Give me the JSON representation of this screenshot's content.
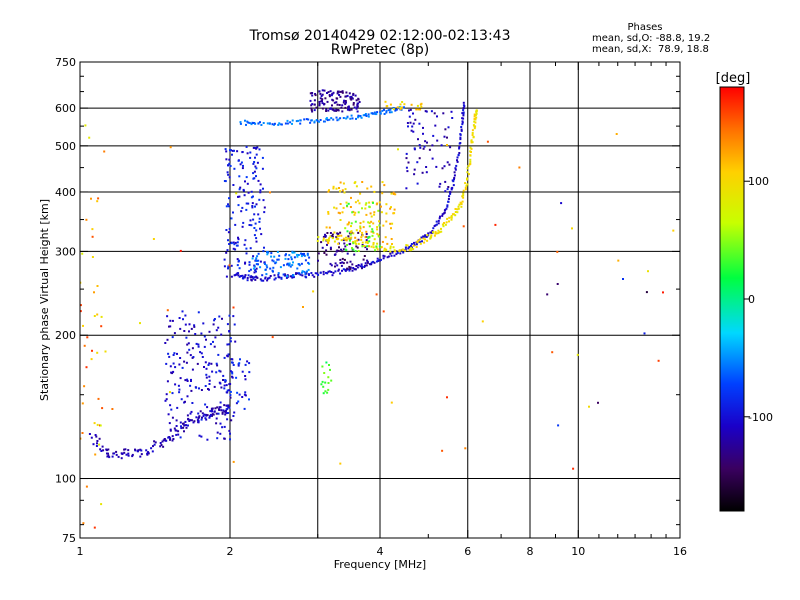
{
  "chart_data": {
    "type": "scatter",
    "title": "Tromsø 20140429 02:12:00-02:13:43",
    "subtitle": "RwPretec (8p)",
    "xlabel": "Frequency [MHz]",
    "ylabel": "Stationary phase Virtual Height [km]",
    "x_scale": "log",
    "y_scale": "log",
    "xlim": [
      1,
      16
    ],
    "ylim": [
      75,
      750
    ],
    "x_ticks": [
      1,
      2,
      4,
      6,
      8,
      10,
      16
    ],
    "x_tick_labels": [
      "1",
      "2",
      "4",
      "6",
      "8",
      "10",
      "16"
    ],
    "x_gridlines": [
      2,
      3,
      4,
      6,
      8,
      10
    ],
    "y_ticks": [
      75,
      100,
      200,
      300,
      400,
      500,
      600,
      750
    ],
    "y_tick_labels": [
      "75",
      "100",
      "200",
      "300",
      "400",
      "500",
      "600",
      "750"
    ],
    "y_gridlines": [
      100,
      200,
      300,
      400,
      500,
      600
    ],
    "phases_box": {
      "heading": "Phases",
      "line_o": "mean, sd,O: -88.8, 19.2",
      "line_x": "mean, sd,X:  78.9, 18.8"
    },
    "colorbar": {
      "label": "[deg]",
      "range": [
        -180,
        180
      ],
      "tick_values": [
        100,
        0,
        -100
      ],
      "tick_labels": [
        "100",
        "0",
        "-100"
      ]
    },
    "series": [
      {
        "name": "lower-E-trace",
        "kind": "line",
        "points": [
          [
            1.05,
            123
          ],
          [
            1.12,
            114
          ],
          [
            1.2,
            112
          ],
          [
            1.3,
            113
          ],
          [
            1.4,
            116
          ],
          [
            1.5,
            122
          ],
          [
            1.6,
            129
          ],
          [
            1.7,
            133
          ],
          [
            1.8,
            136
          ],
          [
            1.9,
            139
          ],
          [
            2.0,
            142
          ]
        ],
        "phase": -115,
        "spread_f": 0.02,
        "spread_h": 3
      },
      {
        "name": "E-cusp-spread",
        "kind": "cloud",
        "x_range": [
          1.48,
          2.05
        ],
        "y_range": [
          120,
          225
        ],
        "phase": -105,
        "count": 210
      },
      {
        "name": "E-edge-spread",
        "kind": "cloud",
        "x_range": [
          1.95,
          2.2
        ],
        "y_range": [
          135,
          180
        ],
        "phase": -90,
        "count": 40
      },
      {
        "name": "F-O-trace",
        "kind": "line",
        "points": [
          [
            2.05,
            270
          ],
          [
            2.15,
            264
          ],
          [
            2.3,
            263
          ],
          [
            2.5,
            265
          ],
          [
            2.7,
            267
          ],
          [
            2.9,
            268
          ],
          [
            3.2,
            270
          ],
          [
            3.5,
            275
          ],
          [
            3.8,
            283
          ],
          [
            4.1,
            292
          ],
          [
            4.5,
            303
          ],
          [
            4.8,
            315
          ],
          [
            5.1,
            332
          ],
          [
            5.4,
            365
          ],
          [
            5.6,
            410
          ],
          [
            5.75,
            480
          ],
          [
            5.85,
            560
          ],
          [
            5.9,
            620
          ]
        ],
        "phase": -105,
        "spread_f": 0.02,
        "spread_h": 3
      },
      {
        "name": "F-low-spread",
        "kind": "cloud",
        "x_range": [
          1.95,
          2.35
        ],
        "y_range": [
          265,
          500
        ],
        "phase": -95,
        "count": 170
      },
      {
        "name": "F-mid-spread",
        "kind": "cloud",
        "x_range": [
          2.2,
          2.9
        ],
        "y_range": [
          266,
          300
        ],
        "phase": -60,
        "count": 90
      },
      {
        "name": "F-purple-spread",
        "kind": "cloud",
        "x_range": [
          3.0,
          3.8
        ],
        "y_range": [
          275,
          330
        ],
        "phase": -130,
        "count": 90
      },
      {
        "name": "F-X-trace",
        "kind": "line",
        "points": [
          [
            3.0,
            320
          ],
          [
            3.4,
            318
          ],
          [
            3.8,
            310
          ],
          [
            4.2,
            303
          ],
          [
            4.6,
            305
          ],
          [
            5.0,
            320
          ],
          [
            5.3,
            335
          ],
          [
            5.6,
            355
          ],
          [
            5.85,
            380
          ],
          [
            6.0,
            430
          ],
          [
            6.1,
            500
          ],
          [
            6.2,
            560
          ],
          [
            6.25,
            600
          ]
        ],
        "phase": 95,
        "spread_f": 0.03,
        "spread_h": 5
      },
      {
        "name": "F-X-spread",
        "kind": "cloud",
        "x_range": [
          3.1,
          4.3
        ],
        "y_range": [
          305,
          420
        ],
        "phase": 110,
        "count": 130
      },
      {
        "name": "F-X-green-spread",
        "kind": "cloud",
        "x_range": [
          3.4,
          4.0
        ],
        "y_range": [
          300,
          380
        ],
        "phase": 40,
        "count": 40
      },
      {
        "name": "top-trace",
        "kind": "line",
        "points": [
          [
            2.1,
            560
          ],
          [
            2.3,
            555
          ],
          [
            2.6,
            560
          ],
          [
            2.9,
            565
          ],
          [
            3.2,
            570
          ],
          [
            3.6,
            575
          ],
          [
            3.9,
            582
          ],
          [
            4.2,
            593
          ],
          [
            4.5,
            603
          ]
        ],
        "phase": -60,
        "spread_f": 0.02,
        "spread_h": 6
      },
      {
        "name": "top-blob",
        "kind": "cloud",
        "x_range": [
          2.9,
          3.65
        ],
        "y_range": [
          590,
          655
        ],
        "phase": -125,
        "count": 120
      },
      {
        "name": "top-yellow",
        "kind": "cloud",
        "x_range": [
          4.1,
          4.9
        ],
        "y_range": [
          595,
          620
        ],
        "phase": 105,
        "count": 20
      },
      {
        "name": "upper-right-blue",
        "kind": "cloud",
        "x_range": [
          4.5,
          5.6
        ],
        "y_range": [
          400,
          600
        ],
        "phase": -115,
        "count": 70
      },
      {
        "name": "mid-green-column",
        "kind": "cloud",
        "x_range": [
          3.05,
          3.2
        ],
        "y_range": [
          150,
          180
        ],
        "phase": 30,
        "count": 16
      },
      {
        "name": "noise-near-1MHz",
        "kind": "cloud",
        "x_range": [
          1.0,
          1.12
        ],
        "y_range": [
          75,
          600
        ],
        "phase": 120,
        "count": 40
      },
      {
        "name": "noise-scatter",
        "kind": "cloud",
        "x_range": [
          1.0,
          16.0
        ],
        "y_range": [
          100,
          600
        ],
        "phase": 130,
        "count": 45
      },
      {
        "name": "noise-right-blue",
        "kind": "cloud",
        "x_range": [
          8.5,
          14.0
        ],
        "y_range": [
          110,
          420
        ],
        "phase": -115,
        "count": 8
      }
    ]
  }
}
